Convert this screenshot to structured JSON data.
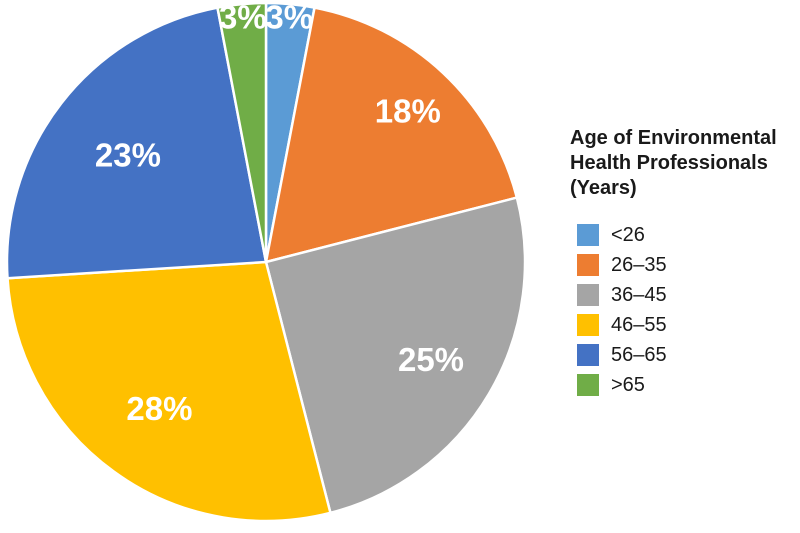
{
  "chart_data": {
    "type": "pie",
    "title": "Age of Environmental Health Professionals (Years)",
    "categories": [
      "<26",
      "26–35",
      "36–45",
      "46–55",
      "56–65",
      ">65"
    ],
    "values": [
      3,
      18,
      25,
      28,
      23,
      3
    ],
    "slice_labels": [
      "3%",
      "18%",
      "25%",
      "28%",
      "23%",
      "3%"
    ],
    "colors": [
      "#5B9BD5",
      "#ED7D31",
      "#A5A5A5",
      "#FFC000",
      "#4472C4",
      "#70AD47"
    ],
    "slice_label_color": "#FFFFFF",
    "slice_border_color": "#FFFFFF",
    "background_color": "#FFFFFF",
    "start_angle_deg": 0,
    "direction": "clockwise",
    "legend_position": "right",
    "label_radius_fraction": [
      0.95,
      0.8,
      0.74,
      0.7,
      0.675,
      0.95
    ]
  }
}
